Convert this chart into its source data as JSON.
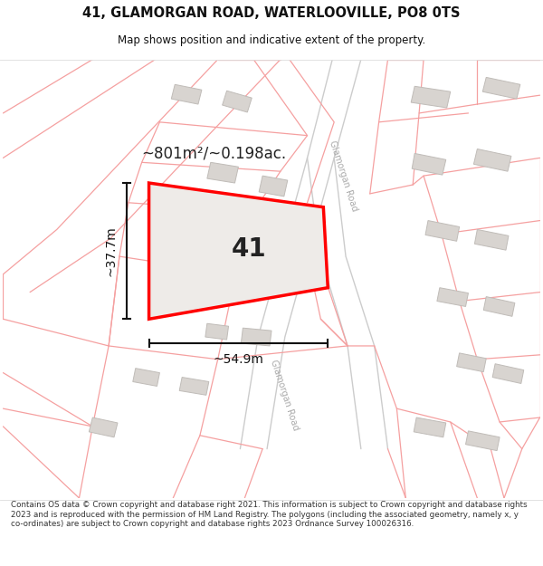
{
  "title": "41, GLAMORGAN ROAD, WATERLOOVILLE, PO8 0TS",
  "subtitle": "Map shows position and indicative extent of the property.",
  "area_text": "~801m²/~0.198ac.",
  "dim_width": "~54.9m",
  "dim_height": "~37.7m",
  "property_label": "41",
  "footer": "Contains OS data © Crown copyright and database right 2021. This information is subject to Crown copyright and database rights 2023 and is reproduced with the permission of HM Land Registry. The polygons (including the associated geometry, namely x, y co-ordinates) are subject to Crown copyright and database rights 2023 Ordnance Survey 100026316.",
  "bg_color": "#ffffff",
  "plot_line_color": "#f5a0a0",
  "road_line_color": "#cccccc",
  "building_fill": "#d8d4d0",
  "building_edge": "#c0bcb8",
  "property_fill": "#eeebe8",
  "property_outline": "#ff0000",
  "title_color": "#111111",
  "footer_color": "#333333",
  "dim_line_color": "#111111",
  "road_label_color": "#aaaaaa",
  "area_text_color": "#222222",
  "property_num_color": "#222222"
}
